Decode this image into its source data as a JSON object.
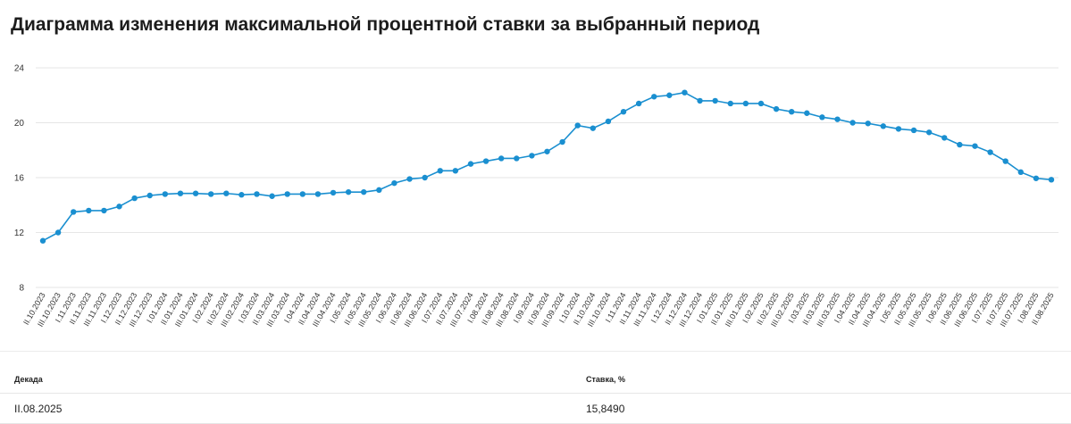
{
  "page": {
    "title": "Диаграмма изменения максимальной процентной ставки за выбранный период"
  },
  "colors": {
    "line": "#1a8fd0",
    "grid": "#e6e6e6"
  },
  "chart_data": {
    "type": "line",
    "title": "",
    "xlabel": "",
    "ylabel": "",
    "ylim": [
      8,
      24
    ],
    "yticks": [
      8,
      12,
      16,
      20,
      24
    ],
    "grid": true,
    "legend": "none",
    "categories": [
      "II.10.2023",
      "III.10.2023",
      "I.11.2023",
      "II.11.2023",
      "III.11.2023",
      "I.12.2023",
      "II.12.2023",
      "III.12.2023",
      "I.01.2024",
      "II.01.2024",
      "III.01.2024",
      "I.02.2024",
      "II.02.2024",
      "III.02.2024",
      "I.03.2024",
      "II.03.2024",
      "III.03.2024",
      "I.04.2024",
      "II.04.2024",
      "III.04.2024",
      "I.05.2024",
      "II.05.2024",
      "III.05.2024",
      "I.06.2024",
      "II.06.2024",
      "III.06.2024",
      "I.07.2024",
      "II.07.2024",
      "III.07.2024",
      "I.08.2024",
      "II.08.2024",
      "III.08.2024",
      "I.09.2024",
      "II.09.2024",
      "III.09.2024",
      "I.10.2024",
      "II.10.2024",
      "III.10.2024",
      "I.11.2024",
      "II.11.2024",
      "III.11.2024",
      "I.12.2024",
      "II.12.2024",
      "III.12.2024",
      "I.01.2025",
      "II.01.2025",
      "III.01.2025",
      "I.02.2025",
      "II.02.2025",
      "III.02.2025",
      "I.03.2025",
      "II.03.2025",
      "III.03.2025",
      "I.04.2025",
      "II.04.2025",
      "III.04.2025",
      "I.05.2025",
      "II.05.2025",
      "III.05.2025",
      "I.06.2025",
      "II.06.2025",
      "III.06.2025",
      "I.07.2025",
      "II.07.2025",
      "III.07.2025",
      "I.08.2025",
      "II.08.2025"
    ],
    "series": [
      {
        "values": [
          11.4,
          12.0,
          13.5,
          13.6,
          13.6,
          13.9,
          14.5,
          14.7,
          14.8,
          14.85,
          14.85,
          14.8,
          14.85,
          14.75,
          14.8,
          14.65,
          14.8,
          14.8,
          14.8,
          14.9,
          14.95,
          14.95,
          15.1,
          15.6,
          15.9,
          16.0,
          16.5,
          16.5,
          17.0,
          17.2,
          17.4,
          17.4,
          17.6,
          17.9,
          18.6,
          19.8,
          19.6,
          20.1,
          20.8,
          21.4,
          21.9,
          22.0,
          22.2,
          21.6,
          21.6,
          21.4,
          21.4,
          21.4,
          21.0,
          20.8,
          20.7,
          20.4,
          20.25,
          20.0,
          19.95,
          19.75,
          19.55,
          19.45,
          19.3,
          18.9,
          18.4,
          18.3,
          17.85,
          17.2,
          16.4,
          15.95,
          15.849
        ]
      }
    ]
  },
  "table": {
    "headers": {
      "decade": "Декада",
      "rate": "Ставка, %"
    },
    "row": {
      "decade": "II.08.2025",
      "rate": "15,8490"
    }
  }
}
